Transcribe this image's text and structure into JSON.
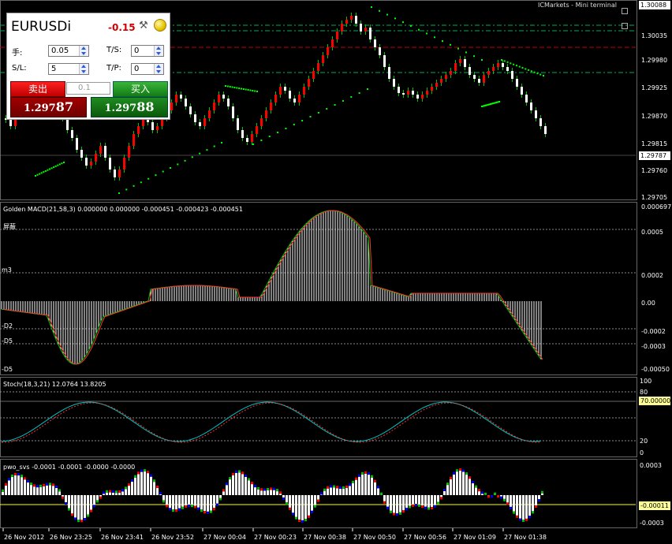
{
  "window": {
    "broker_label": "ICMarkets - Mini terminal",
    "current_price_top": "1.30088",
    "current_price_bid": "1.29787"
  },
  "mini_terminal": {
    "symbol": "EURUSDi",
    "pnl": "-0.15",
    "lots_label": "手:",
    "lots_value": "0.05",
    "ts_label": "T/S:",
    "ts_value": "0",
    "sl_label": "S/L:",
    "sl_value": "5",
    "tp_label": "T/P:",
    "tp_value": "0",
    "sell_label": "卖出",
    "buy_label": "买入",
    "lot_field": "0.1",
    "sell_price_main": "1.297",
    "sell_price_big": "87",
    "buy_price_main": "1.297",
    "buy_price_big": "88"
  },
  "price_axis": [
    "1.30088",
    "1.30035",
    "1.29980",
    "1.29925",
    "1.29870",
    "1.29815",
    "1.29787",
    "1.29760",
    "1.29705"
  ],
  "macd": {
    "title": "Golden MACD(21,58,3) 0.000000 0.000000 -0.000451 -0.000423 -0.000451",
    "axis": [
      "0.000697",
      "0.0005",
      "0.0002",
      "0.00",
      "-0.0002",
      "-0.0003",
      "-0.00050"
    ],
    "levels": [
      "m3",
      "-D2",
      "-D5",
      "-D5"
    ],
    "top_level_glyph": "屏蔽"
  },
  "stoch": {
    "title": "Stoch(18,3,21) 12.0764 13.8205",
    "axis": [
      "100",
      "80",
      "70.00000",
      "20",
      "0"
    ]
  },
  "pwo": {
    "title": "pwo_svs -0.0001 -0.0001 -0.0000 -0.0000",
    "axis": [
      "0.0003",
      "-0.00011",
      "-0.0003"
    ]
  },
  "time_axis": [
    "26 Nov 2012",
    "26 Nov 23:25",
    "26 Nov 23:41",
    "26 Nov 23:52",
    "27 Nov 00:04",
    "27 Nov 00:23",
    "27 Nov 00:38",
    "27 Nov 00:50",
    "27 Nov 00:56",
    "27 Nov 01:09",
    "27 Nov 01:38"
  ],
  "colors": {
    "bull_candle": "#ff0000",
    "bear_candle": "#ffffff",
    "parabolic_sar": "#00ff00",
    "grid": "#555555",
    "level_green": "#00b050",
    "level_red": "#c00000"
  }
}
